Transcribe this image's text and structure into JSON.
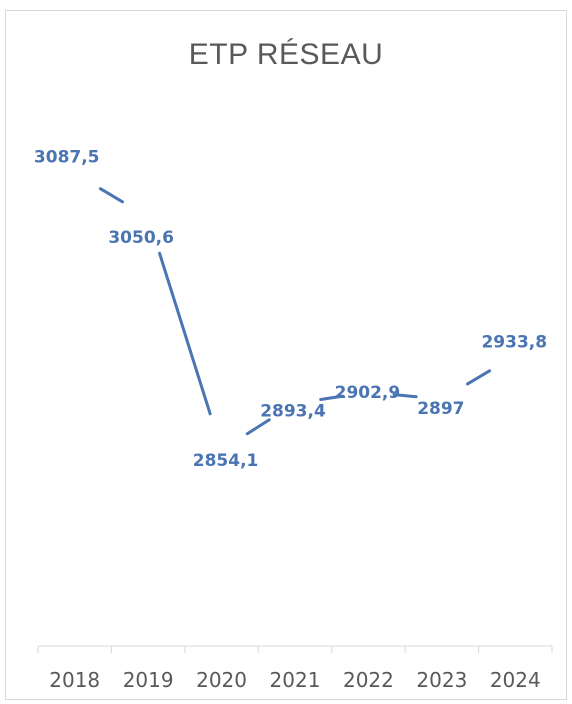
{
  "chart_data": {
    "type": "line",
    "title": "ETP RÉSEAU",
    "xlabel": "",
    "ylabel": "",
    "categories": [
      "2018",
      "2019",
      "2020",
      "2021",
      "2022",
      "2023",
      "2024"
    ],
    "values": [
      3087.5,
      3050.6,
      2854.1,
      2893.4,
      2902.9,
      2897,
      2933.8
    ],
    "value_labels": [
      "3087,5",
      "3050,6",
      "2854,1",
      "2893,4",
      "2902,9",
      "2897",
      "2933,8"
    ],
    "ylim": [
      2650,
      3200
    ],
    "grid": false,
    "legend": "none",
    "y_axis_visible": false,
    "line_color": "#4a74b2",
    "label_color": "#4a74b2"
  }
}
